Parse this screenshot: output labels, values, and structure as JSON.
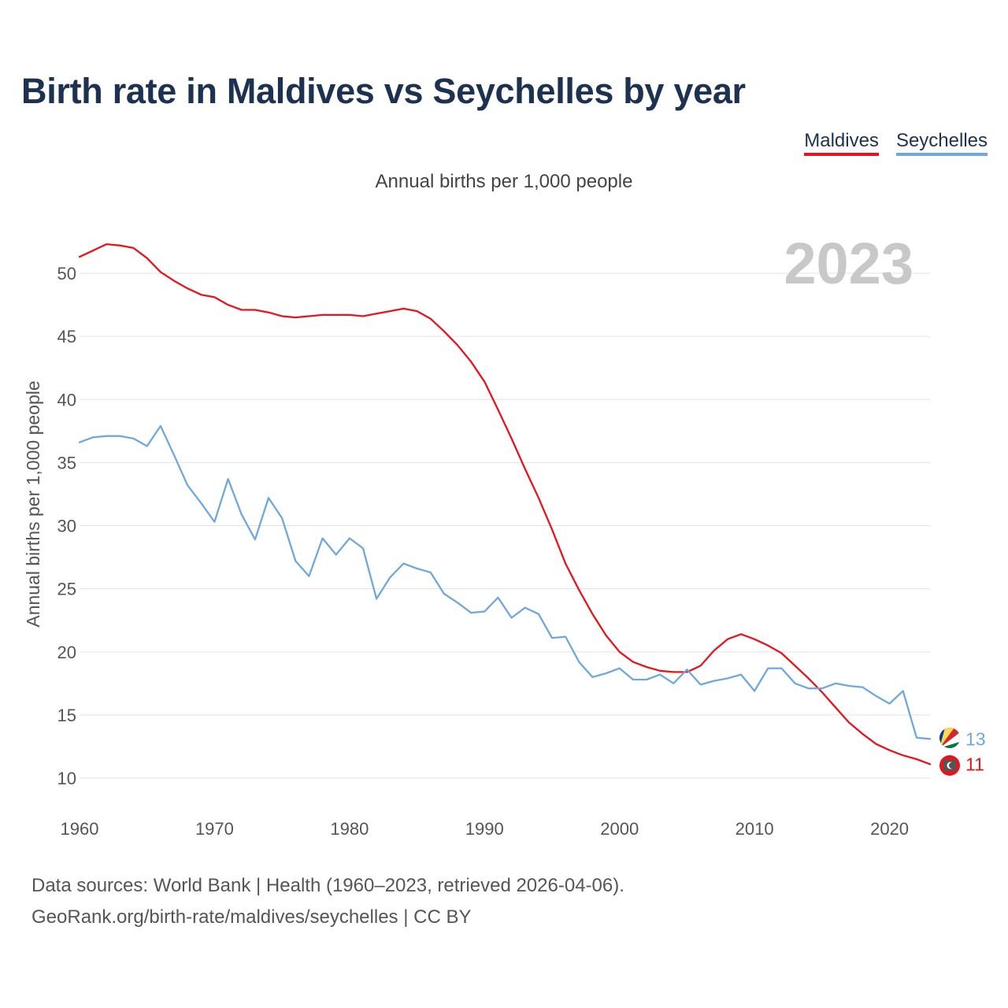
{
  "header": {
    "title": "Birth rate in Maldives vs Seychelles by year",
    "subtitle": "Annual births per 1,000 people"
  },
  "legend": [
    {
      "name": "Maldives",
      "color": "#e8141c"
    },
    {
      "name": "Seychelles",
      "color": "#6fa8dc"
    }
  ],
  "footer": {
    "line1": "Data sources: World Bank | Health (1960–2023, retrieved 2026-04-06).",
    "line2": "GeoRank.org/birth-rate/maldives/seychelles | CC BY"
  },
  "chart_data": {
    "type": "line",
    "title": "Birth rate in Maldives vs Seychelles by year",
    "year_label": "2023",
    "xlabel": "",
    "ylabel": "Annual births per 1,000 people",
    "xlim": [
      1960,
      2023
    ],
    "ylim": [
      10,
      50
    ],
    "xticks": [
      1960,
      1970,
      1980,
      1990,
      2000,
      2010,
      2020
    ],
    "yticks": [
      10,
      15,
      20,
      25,
      30,
      35,
      40,
      45,
      50
    ],
    "grid": true,
    "legend_position": "top-right",
    "x": [
      1960,
      1961,
      1962,
      1963,
      1964,
      1965,
      1966,
      1967,
      1968,
      1969,
      1970,
      1971,
      1972,
      1973,
      1974,
      1975,
      1976,
      1977,
      1978,
      1979,
      1980,
      1981,
      1982,
      1983,
      1984,
      1985,
      1986,
      1987,
      1988,
      1989,
      1990,
      1991,
      1992,
      1993,
      1994,
      1995,
      1996,
      1997,
      1998,
      1999,
      2000,
      2001,
      2002,
      2003,
      2004,
      2005,
      2006,
      2007,
      2008,
      2009,
      2010,
      2011,
      2012,
      2013,
      2014,
      2015,
      2016,
      2017,
      2018,
      2019,
      2020,
      2021,
      2022,
      2023
    ],
    "series": [
      {
        "name": "Maldives",
        "color": "#e8141c",
        "end_label": "11",
        "values": [
          51.3,
          51.8,
          52.3,
          52.2,
          52.0,
          51.2,
          50.1,
          49.4,
          48.8,
          48.3,
          48.1,
          47.5,
          47.1,
          47.1,
          46.9,
          46.6,
          46.5,
          46.6,
          46.7,
          46.7,
          46.7,
          46.6,
          46.8,
          47.0,
          47.2,
          47.0,
          46.4,
          45.4,
          44.3,
          43.0,
          41.4,
          39.2,
          36.9,
          34.5,
          32.2,
          29.7,
          27.0,
          24.9,
          23.0,
          21.3,
          20.0,
          19.2,
          18.8,
          18.5,
          18.4,
          18.4,
          18.9,
          20.1,
          21.0,
          21.4,
          21.0,
          20.5,
          19.9,
          18.9,
          17.9,
          16.8,
          15.6,
          14.4,
          13.5,
          12.7,
          12.2,
          11.8,
          11.5,
          11.1
        ]
      },
      {
        "name": "Seychelles",
        "color": "#6fa8dc",
        "end_label": "13",
        "values": [
          36.6,
          37.0,
          37.1,
          37.1,
          36.9,
          36.3,
          37.9,
          35.6,
          33.2,
          31.8,
          30.3,
          33.7,
          30.9,
          28.9,
          32.2,
          30.6,
          27.2,
          26.0,
          29.0,
          27.7,
          29.0,
          28.2,
          24.2,
          25.9,
          27.0,
          26.6,
          26.3,
          24.6,
          23.9,
          23.1,
          23.2,
          24.3,
          22.7,
          23.5,
          23.0,
          21.1,
          21.2,
          19.2,
          18.0,
          18.3,
          18.7,
          17.8,
          17.8,
          18.2,
          17.5,
          18.6,
          17.4,
          17.7,
          17.9,
          18.2,
          16.9,
          18.7,
          18.7,
          17.5,
          17.1,
          17.1,
          17.5,
          17.3,
          17.2,
          16.5,
          15.9,
          16.9,
          13.2,
          13.1
        ]
      }
    ]
  }
}
